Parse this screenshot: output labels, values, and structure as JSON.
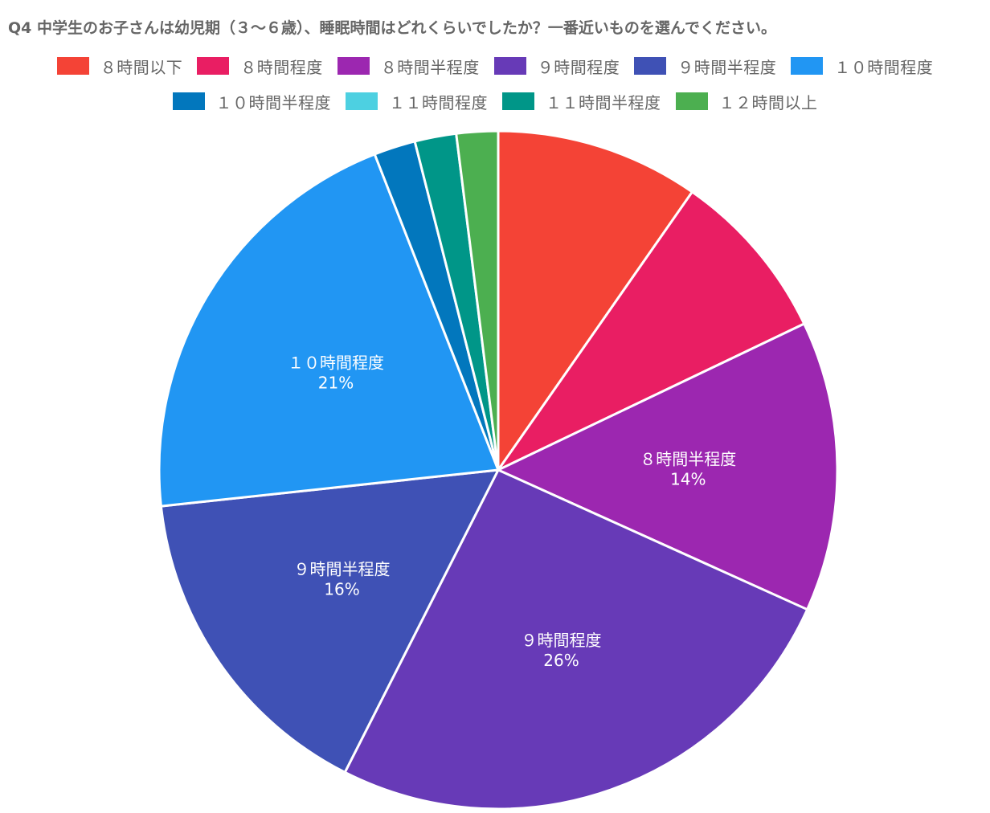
{
  "chart_data": {
    "type": "pie",
    "title": "Q4 中学生のお子さんは幼児期（３〜６歳）、睡眠時間はどれくらいでしたか？一番近いものを選んでください。",
    "categories": [
      "８時間以下",
      "８時間程度",
      "８時間半程度",
      "９時間程度",
      "９時間半程度",
      "１０時間程度",
      "１０時間半程度",
      "１１時間程度",
      "１１時間半程度",
      "１２時間以上"
    ],
    "values": [
      9.8,
      8.3,
      14,
      26,
      16,
      21,
      2,
      0,
      2,
      2
    ],
    "colors": [
      "#F44336",
      "#E91E63",
      "#9C27B0",
      "#673AB7",
      "#3F51B5",
      "#2196F3",
      "#0277BD",
      "#4DD0E1",
      "#009688",
      "#4CAF50"
    ],
    "slice_labels": {
      "8時間半程度_label": {
        "name": "８時間半程度",
        "pct": "14%"
      },
      "9時間程度_label": {
        "name": "９時間程度",
        "pct": "26%"
      },
      "9時間半程度_label": {
        "name": "９時間半程度",
        "pct": "16%"
      },
      "10時間程度_label": {
        "name": "１０時間程度",
        "pct": "21%"
      }
    },
    "labeled_slices": [
      {
        "index": 2,
        "name": "８時間半程度",
        "pct": "14%"
      },
      {
        "index": 3,
        "name": "９時間程度",
        "pct": "26%"
      },
      {
        "index": 4,
        "name": "９時間半程度",
        "pct": "16%"
      },
      {
        "index": 5,
        "name": "１０時間程度",
        "pct": "21%"
      }
    ],
    "legend_position": "top",
    "start_angle": "12 o'clock",
    "direction": "clockwise"
  }
}
